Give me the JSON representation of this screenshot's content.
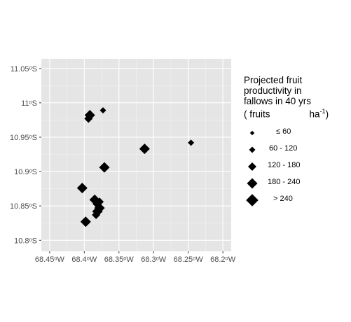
{
  "chart_data": {
    "type": "scatter",
    "title": "",
    "xlabel": "",
    "ylabel": "",
    "xlim": [
      68.462,
      68.188
    ],
    "ylim": [
      11.064,
      10.784
    ],
    "x_ticks": [
      68.45,
      68.4,
      68.35,
      68.3,
      68.25,
      68.2
    ],
    "x_tick_labels": [
      "68.45ᵒW",
      "68.4ᵒW",
      "68.35ᵒW",
      "68.3ᵒW",
      "68.25ᵒW",
      "68.2ᵒW"
    ],
    "y_ticks": [
      10.8,
      10.85,
      10.9,
      10.95,
      11.0,
      11.05
    ],
    "y_tick_labels": [
      "10.8ᵒS",
      "10.85ᵒS",
      "10.9ᵒS",
      "10.95ᵒS",
      "11ᵒS",
      "11.05ᵒS"
    ],
    "grid": true,
    "legend_position": "right",
    "legend": {
      "title_lines": [
        "Projected fruit",
        "productivity in",
        "fallows in 40 yrs"
      ],
      "unit_left": "( fruits",
      "unit_right": "ha",
      "unit_exp": "-1",
      "unit_close": ")",
      "classes": [
        {
          "label": "≤ 60",
          "size_class": 1
        },
        {
          "label": "60 - 120",
          "size_class": 2
        },
        {
          "label": "120 - 180",
          "size_class": 3
        },
        {
          "label": "180 - 240",
          "size_class": 4
        },
        {
          "label": "> 240",
          "size_class": 5
        }
      ]
    },
    "points": [
      {
        "lon": 68.398,
        "lat": 10.827,
        "size_class": 4
      },
      {
        "lon": 68.383,
        "lat": 10.837,
        "size_class": 3
      },
      {
        "lon": 68.381,
        "lat": 10.842,
        "size_class": 4
      },
      {
        "lon": 68.378,
        "lat": 10.847,
        "size_class": 4
      },
      {
        "lon": 68.382,
        "lat": 10.853,
        "size_class": 3
      },
      {
        "lon": 68.385,
        "lat": 10.859,
        "size_class": 4
      },
      {
        "lon": 68.378,
        "lat": 10.856,
        "size_class": 3
      },
      {
        "lon": 68.403,
        "lat": 10.876,
        "size_class": 4
      },
      {
        "lon": 68.371,
        "lat": 10.906,
        "size_class": 4
      },
      {
        "lon": 68.313,
        "lat": 10.933,
        "size_class": 4
      },
      {
        "lon": 68.246,
        "lat": 10.942,
        "size_class": 2
      },
      {
        "lon": 68.394,
        "lat": 10.977,
        "size_class": 3
      },
      {
        "lon": 68.392,
        "lat": 10.982,
        "size_class": 4
      },
      {
        "lon": 68.373,
        "lat": 10.989,
        "size_class": 2
      }
    ],
    "colors": {
      "panel": "#e5e5e5",
      "grid_major": "#ffffff",
      "grid_minor": "#f2f2f2",
      "marker": "#000000"
    }
  }
}
